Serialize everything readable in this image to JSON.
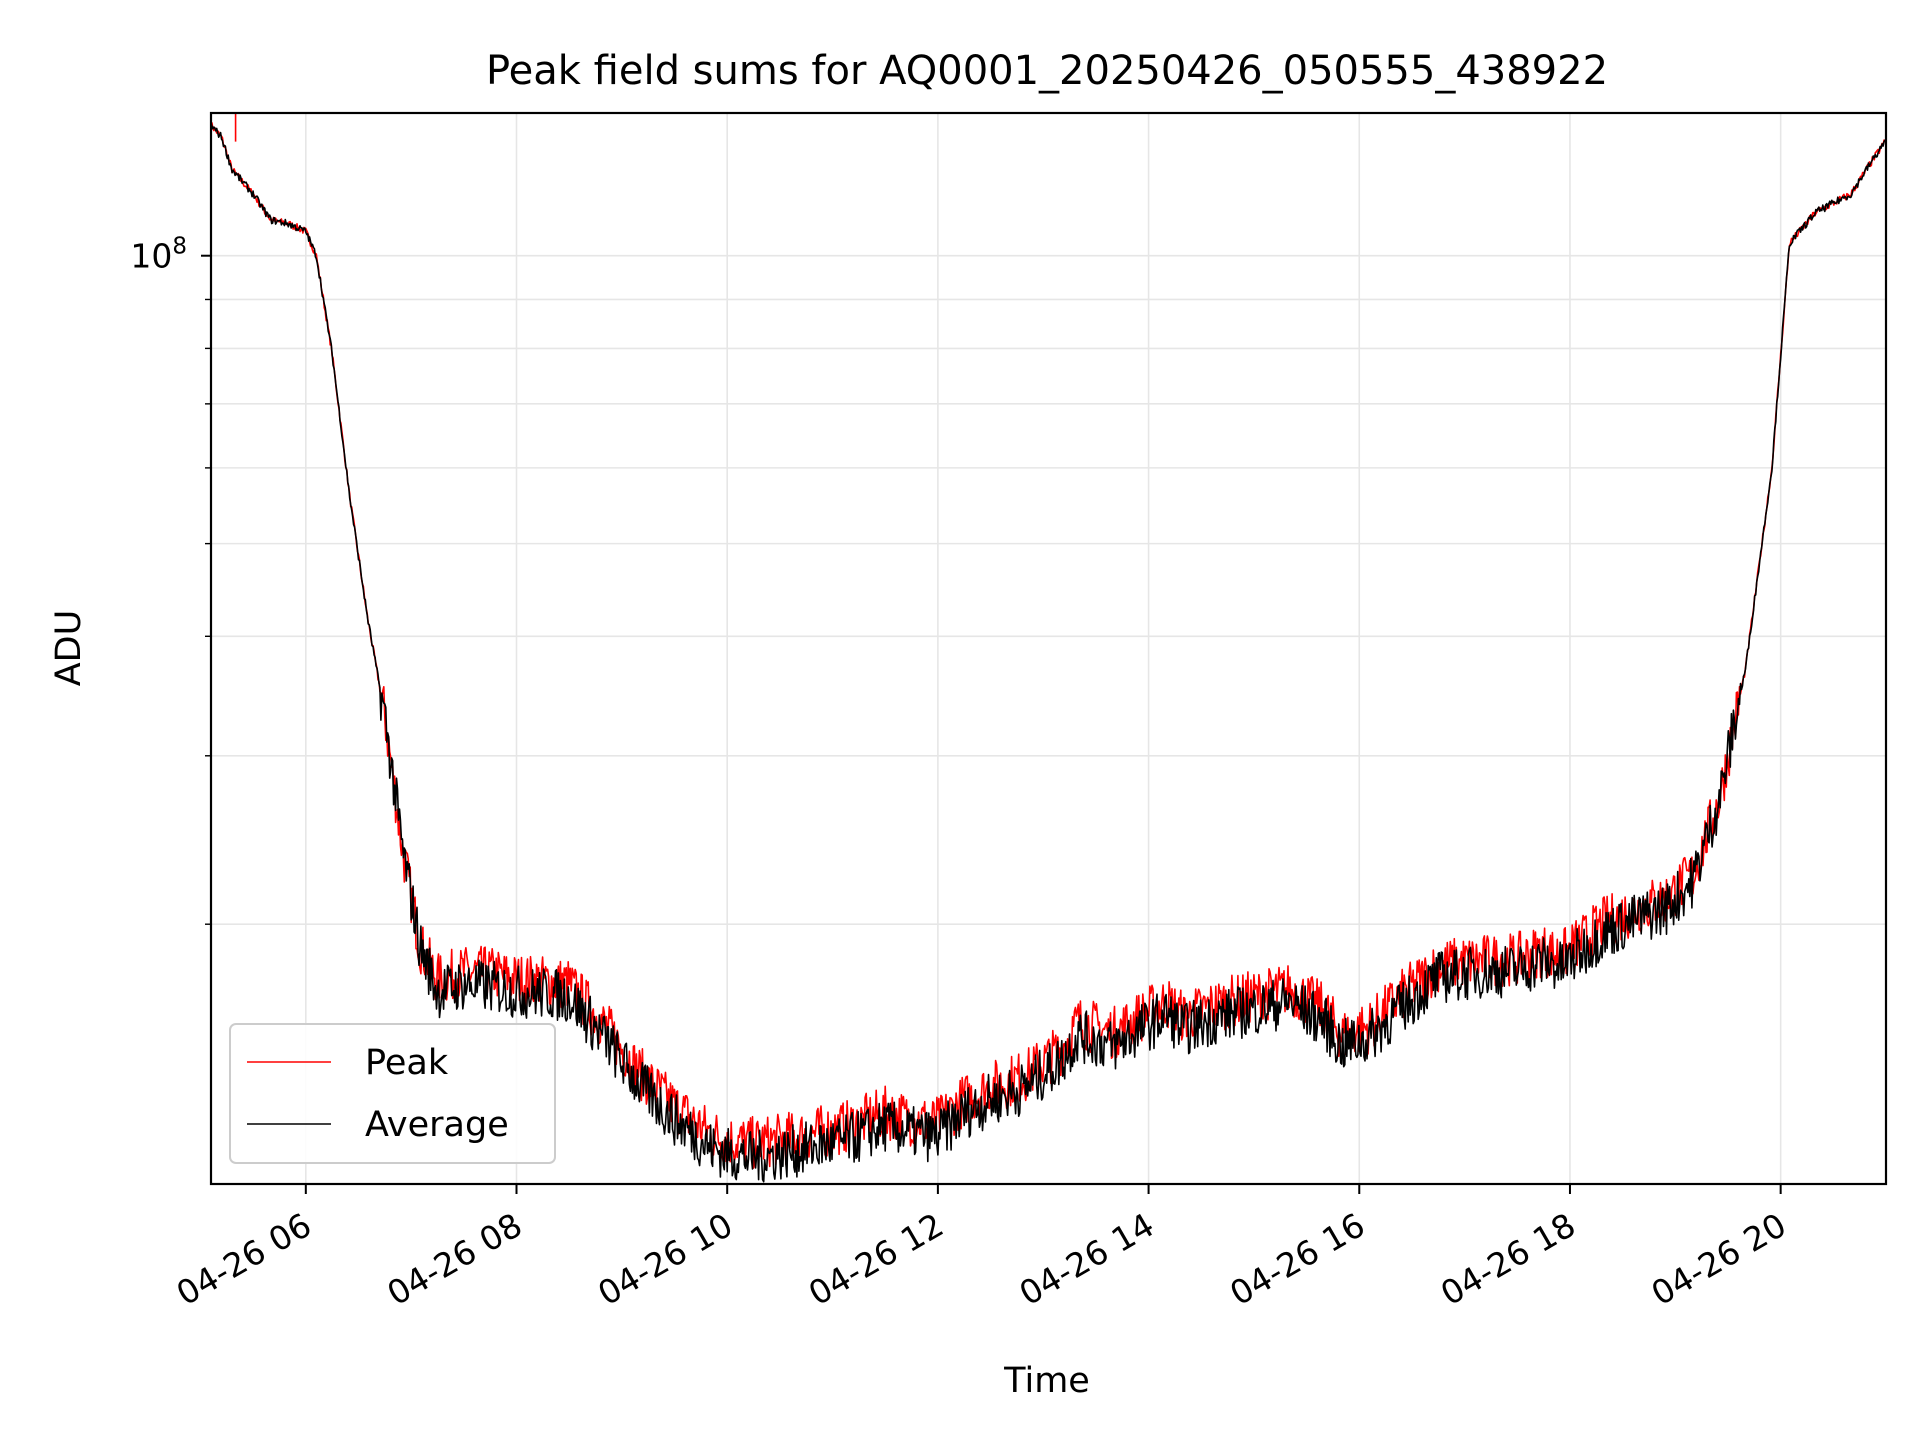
{
  "chart_data": {
    "type": "line",
    "title": "Peak field sums for AQ0001_20250426_050555_438922",
    "xlabel": "Time",
    "ylabel": "ADU",
    "y_scale": "log",
    "y_tick_labels": [
      {
        "value": 100000000,
        "label": "10^8"
      }
    ],
    "ylim": [
      10700000,
      141000000
    ],
    "xlim": [
      "2025-04-26 05:06",
      "2025-04-26 21:00"
    ],
    "x_tick_labels": [
      "04-26 06",
      "04-26 08",
      "04-26 10",
      "04-26 12",
      "04-26 14",
      "04-26 16",
      "04-26 18",
      "04-26 20"
    ],
    "x_tick_times": [
      "2025-04-26 06:00",
      "2025-04-26 08:00",
      "2025-04-26 10:00",
      "2025-04-26 12:00",
      "2025-04-26 14:00",
      "2025-04-26 16:00",
      "2025-04-26 18:00",
      "2025-04-26 20:00"
    ],
    "grid": true,
    "legend_position": "lower-left",
    "series": [
      {
        "name": "Peak",
        "color": "#ff0000",
        "spike": {
          "x": "2025-04-26 05:20",
          "y": 141000000
        },
        "x": [
          "2025-04-26 05:06",
          "2025-04-26 05:12",
          "2025-04-26 05:18",
          "2025-04-26 05:30",
          "2025-04-26 05:40",
          "2025-04-26 05:50",
          "2025-04-26 06:00",
          "2025-04-26 06:06",
          "2025-04-26 06:15",
          "2025-04-26 06:25",
          "2025-04-26 06:35",
          "2025-04-26 06:45",
          "2025-04-26 06:55",
          "2025-04-26 07:05",
          "2025-04-26 07:15",
          "2025-04-26 07:30",
          "2025-04-26 07:45",
          "2025-04-26 08:00",
          "2025-04-26 08:20",
          "2025-04-26 08:30",
          "2025-04-26 08:50",
          "2025-04-26 09:10",
          "2025-04-26 09:30",
          "2025-04-26 09:50",
          "2025-04-26 10:00",
          "2025-04-26 10:15",
          "2025-04-26 10:30",
          "2025-04-26 10:50",
          "2025-04-26 11:10",
          "2025-04-26 11:30",
          "2025-04-26 11:45",
          "2025-04-26 12:00",
          "2025-04-26 12:15",
          "2025-04-26 12:30",
          "2025-04-26 12:50",
          "2025-04-26 13:10",
          "2025-04-26 13:20",
          "2025-04-26 13:40",
          "2025-04-26 13:55",
          "2025-04-26 14:10",
          "2025-04-26 14:20",
          "2025-04-26 14:40",
          "2025-04-26 15:00",
          "2025-04-26 15:20",
          "2025-04-26 15:40",
          "2025-04-26 15:50",
          "2025-04-26 16:05",
          "2025-04-26 16:25",
          "2025-04-26 16:45",
          "2025-04-26 17:05",
          "2025-04-26 17:30",
          "2025-04-26 17:45",
          "2025-04-26 17:55",
          "2025-04-26 18:20",
          "2025-04-26 18:40",
          "2025-04-26 18:55",
          "2025-04-26 19:10",
          "2025-04-26 19:25",
          "2025-04-26 19:40",
          "2025-04-26 19:55",
          "2025-04-26 20:05",
          "2025-04-26 20:20",
          "2025-04-26 20:40",
          "2025-04-26 20:50",
          "2025-04-26 21:00"
        ],
        "values": [
          137000000,
          133000000,
          123000000,
          116000000,
          109000000,
          108000000,
          106000000,
          100000000,
          79000000,
          56000000,
          42000000,
          33000000,
          24000000,
          19000000,
          17500000,
          17800000,
          17800000,
          17500000,
          17400000,
          17300000,
          15700000,
          14000000,
          12900000,
          12100000,
          11900000,
          11800000,
          11900000,
          12100000,
          12300000,
          12700000,
          12500000,
          12400000,
          13100000,
          13500000,
          13900000,
          14800000,
          15800000,
          15400000,
          16000000,
          16600000,
          16000000,
          16500000,
          16800000,
          17100000,
          16300000,
          15300000,
          15600000,
          16900000,
          18100000,
          18300000,
          18400000,
          18800000,
          18500000,
          20100000,
          20800000,
          21300000,
          22500000,
          27000000,
          37000000,
          60000000,
          103000000,
          111000000,
          116000000,
          124000000,
          132000000
        ]
      },
      {
        "name": "Average",
        "color": "#000000",
        "x": [
          "2025-04-26 05:06",
          "2025-04-26 05:12",
          "2025-04-26 05:18",
          "2025-04-26 05:30",
          "2025-04-26 05:40",
          "2025-04-26 05:50",
          "2025-04-26 06:00",
          "2025-04-26 06:06",
          "2025-04-26 06:15",
          "2025-04-26 06:25",
          "2025-04-26 06:35",
          "2025-04-26 06:45",
          "2025-04-26 06:55",
          "2025-04-26 07:05",
          "2025-04-26 07:15",
          "2025-04-26 07:30",
          "2025-04-26 07:45",
          "2025-04-26 08:00",
          "2025-04-26 08:20",
          "2025-04-26 08:30",
          "2025-04-26 08:50",
          "2025-04-26 09:10",
          "2025-04-26 09:30",
          "2025-04-26 09:50",
          "2025-04-26 10:00",
          "2025-04-26 10:15",
          "2025-04-26 10:30",
          "2025-04-26 10:50",
          "2025-04-26 11:10",
          "2025-04-26 11:30",
          "2025-04-26 11:45",
          "2025-04-26 12:00",
          "2025-04-26 12:15",
          "2025-04-26 12:30",
          "2025-04-26 12:50",
          "2025-04-26 13:10",
          "2025-04-26 13:20",
          "2025-04-26 13:40",
          "2025-04-26 13:55",
          "2025-04-26 14:10",
          "2025-04-26 14:20",
          "2025-04-26 14:40",
          "2025-04-26 15:00",
          "2025-04-26 15:20",
          "2025-04-26 15:40",
          "2025-04-26 15:50",
          "2025-04-26 16:05",
          "2025-04-26 16:25",
          "2025-04-26 16:45",
          "2025-04-26 17:05",
          "2025-04-26 17:30",
          "2025-04-26 17:45",
          "2025-04-26 17:55",
          "2025-04-26 18:20",
          "2025-04-26 18:40",
          "2025-04-26 18:55",
          "2025-04-26 19:10",
          "2025-04-26 19:25",
          "2025-04-26 19:40",
          "2025-04-26 19:55",
          "2025-04-26 20:05",
          "2025-04-26 20:20",
          "2025-04-26 20:40",
          "2025-04-26 20:50",
          "2025-04-26 21:00"
        ],
        "values": [
          137000000,
          133000000,
          123000000,
          116000000,
          109000000,
          108000000,
          106000000,
          100000000,
          79000000,
          56000000,
          42000000,
          33000000,
          24000000,
          19000000,
          17000000,
          17300000,
          17200000,
          17000000,
          16900000,
          16800000,
          15200000,
          13600000,
          12500000,
          11700000,
          11500000,
          11400000,
          11500000,
          11700000,
          11900000,
          12300000,
          12100000,
          12000000,
          12700000,
          13100000,
          13500000,
          14400000,
          15300000,
          14900000,
          15500000,
          16100000,
          15500000,
          16000000,
          16300000,
          16600000,
          15800000,
          14900000,
          15200000,
          16400000,
          17600000,
          17800000,
          17900000,
          18300000,
          18000000,
          19600000,
          20300000,
          20800000,
          22200000,
          27000000,
          37000000,
          60000000,
          103000000,
          111000000,
          116000000,
          124000000,
          132000000
        ]
      }
    ]
  }
}
